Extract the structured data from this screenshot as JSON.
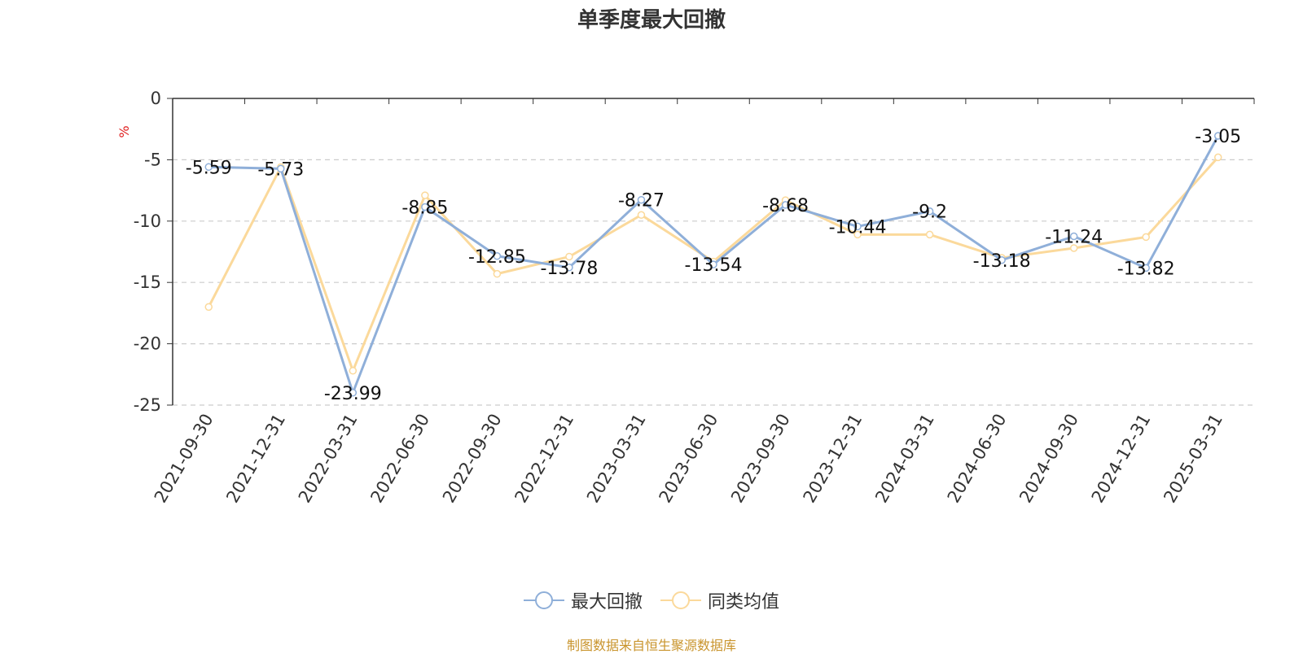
{
  "chart_data": {
    "type": "line",
    "title": "单季度最大回撤",
    "ylabel": "%",
    "ylim": [
      -25,
      0
    ],
    "yticks": [
      0,
      -5,
      -10,
      -15,
      -20,
      -25
    ],
    "grid": true,
    "legend_position": "bottom",
    "categories": [
      "2021-09-30",
      "2021-12-31",
      "2022-03-31",
      "2022-06-30",
      "2022-09-30",
      "2022-12-31",
      "2023-03-31",
      "2023-06-30",
      "2023-09-30",
      "2023-12-31",
      "2024-03-31",
      "2024-06-30",
      "2024-09-30",
      "2024-12-31",
      "2025-03-31"
    ],
    "series": [
      {
        "name": "最大回撤",
        "color": "#8fafd9",
        "labeled": true,
        "values": [
          -5.59,
          -5.73,
          -23.99,
          -8.85,
          -12.85,
          -13.78,
          -8.27,
          -13.54,
          -8.68,
          -10.44,
          -9.2,
          -13.18,
          -11.24,
          -13.82,
          -3.05
        ]
      },
      {
        "name": "同类均值",
        "color": "#fbd99b",
        "labeled": false,
        "values": [
          -17.0,
          -5.6,
          -22.2,
          -7.9,
          -14.3,
          -12.9,
          -9.5,
          -13.3,
          -8.3,
          -11.1,
          -11.1,
          -13.0,
          -12.2,
          -11.3,
          -4.8
        ]
      }
    ]
  },
  "footer": {
    "source": "制图数据来自恒生聚源数据库"
  }
}
